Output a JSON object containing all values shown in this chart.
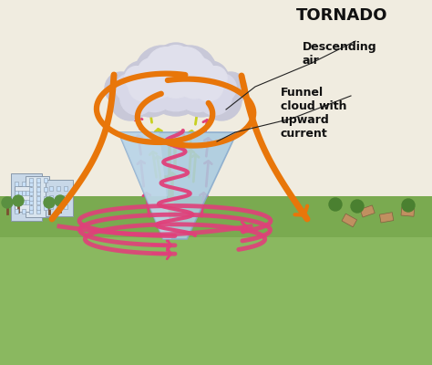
{
  "title": "TORNADO",
  "label_descending": "Descending\nair",
  "label_funnel": "Funnel\ncloud with\nupward\ncurrent",
  "bg_color": "#f5f0e8",
  "funnel_color": "#aacce0",
  "funnel_edge": "#88aacc",
  "cloud_color1": "#c8c8d8",
  "cloud_color2": "#d8d8e8",
  "cloud_color3": "#e0e0ec",
  "orange_color": "#e8760a",
  "pink_color": "#e0407a",
  "yellow_color": "#c8d020",
  "ground_color1": "#8ab860",
  "ground_color2": "#7aaa50",
  "bg_upper": "#f0ece0",
  "title_fontsize": 13,
  "label_fontsize": 9,
  "building_color1": "#c8d8e8",
  "building_color2": "#d8e4ee",
  "tree_color": "#5a9040",
  "trunk_color": "#7a5030"
}
